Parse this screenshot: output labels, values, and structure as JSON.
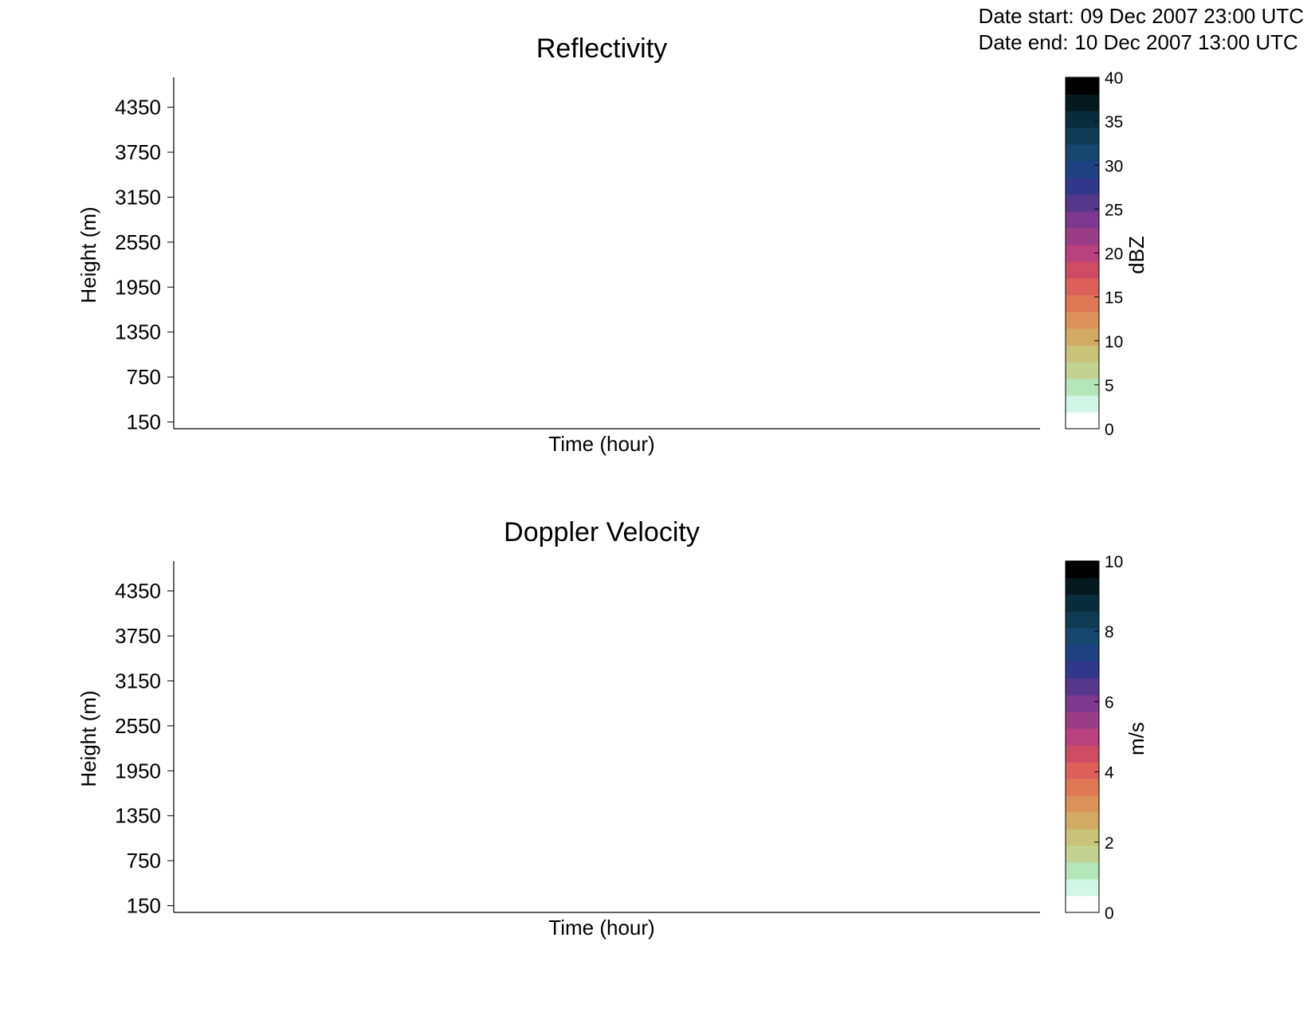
{
  "header": {
    "start_label": "Date start:",
    "start_value": "09 Dec 2007 23:00 UTC",
    "end_label": "Date end:",
    "end_value": "10 Dec 2007 13:00 UTC"
  },
  "colormap": [
    "#ffffff",
    "#d2f5e6",
    "#b4e6b9",
    "#c3d291",
    "#c8c378",
    "#d2aa64",
    "#dc915a",
    "#e17855",
    "#dc5f5a",
    "#cd4b64",
    "#b9417d",
    "#9b3c87",
    "#7d378c",
    "#55378c",
    "#32378c",
    "#1e4182",
    "#14466e",
    "#0f3c55",
    "#0a2d3c",
    "#05191e",
    "#000000"
  ],
  "chart_data": [
    {
      "type": "heatmap",
      "title": "Reflectivity",
      "xlabel": "Time (hour)",
      "ylabel": "Height (m)",
      "yticks": [
        150,
        750,
        1350,
        1950,
        2550,
        3150,
        3750,
        4350
      ],
      "ylim": [
        60,
        4750
      ],
      "data": [],
      "colorbar": {
        "label": "dBZ",
        "range": [
          0,
          40
        ],
        "ticks": [
          0,
          5,
          10,
          15,
          20,
          25,
          30,
          35,
          40
        ]
      }
    },
    {
      "type": "heatmap",
      "title": "Doppler Velocity",
      "xlabel": "Time (hour)",
      "ylabel": "Height (m)",
      "yticks": [
        150,
        750,
        1350,
        1950,
        2550,
        3150,
        3750,
        4350
      ],
      "ylim": [
        60,
        4750
      ],
      "data": [],
      "colorbar": {
        "label": "m/s",
        "range": [
          0,
          10
        ],
        "ticks": [
          0,
          2,
          4,
          6,
          8,
          10
        ]
      }
    }
  ]
}
